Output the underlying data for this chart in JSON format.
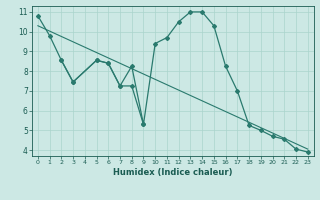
{
  "xlabel": "Humidex (Indice chaleur)",
  "bg_color": "#cce8e4",
  "line_color": "#2a7a6e",
  "grid_color": "#aad4cc",
  "font_color": "#1a5c52",
  "xlim": [
    -0.5,
    23.5
  ],
  "ylim": [
    3.7,
    11.3
  ],
  "yticks": [
    4,
    5,
    6,
    7,
    8,
    9,
    10,
    11
  ],
  "xticks": [
    0,
    1,
    2,
    3,
    4,
    5,
    6,
    7,
    8,
    9,
    10,
    11,
    12,
    13,
    14,
    15,
    16,
    17,
    18,
    19,
    20,
    21,
    22,
    23
  ],
  "curve1_x": [
    0,
    1,
    2,
    3,
    5,
    6,
    7,
    8,
    9,
    10,
    11,
    12,
    13,
    14,
    15,
    16,
    17,
    18,
    19,
    20,
    21,
    22,
    23
  ],
  "curve1_y": [
    10.8,
    9.8,
    8.55,
    7.45,
    8.55,
    8.4,
    7.25,
    8.25,
    5.3,
    9.4,
    9.7,
    10.5,
    11.0,
    11.0,
    10.3,
    8.25,
    7.0,
    5.25,
    5.0,
    4.7,
    4.55,
    4.05,
    3.9
  ],
  "curve2_x": [
    2,
    3,
    5,
    6,
    7,
    8,
    9
  ],
  "curve2_y": [
    8.55,
    7.45,
    8.55,
    8.4,
    7.25,
    7.25,
    5.3
  ],
  "trend_x": [
    0,
    23
  ],
  "trend_y": [
    10.3,
    4.05
  ],
  "ms": 2
}
